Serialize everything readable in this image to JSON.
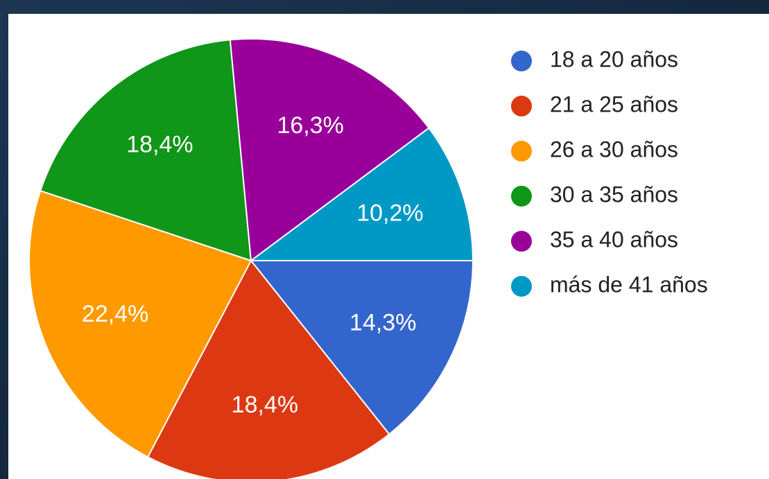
{
  "chart_data": {
    "type": "pie",
    "categories": [
      "18 a 20 años",
      "21 a 25 años",
      "26 a 30 años",
      "30 a 35 años",
      "35 a 40 años",
      "más de 41 años"
    ],
    "values": [
      14.3,
      18.4,
      22.4,
      18.4,
      16.3,
      10.2
    ],
    "value_labels": [
      "14,3%",
      "18,4%",
      "22,4%",
      "18,4%",
      "16,3%",
      "10,2%"
    ],
    "colors": [
      "#3366cc",
      "#dc3912",
      "#ff9900",
      "#109618",
      "#990099",
      "#0099c6"
    ],
    "legend": "right"
  }
}
